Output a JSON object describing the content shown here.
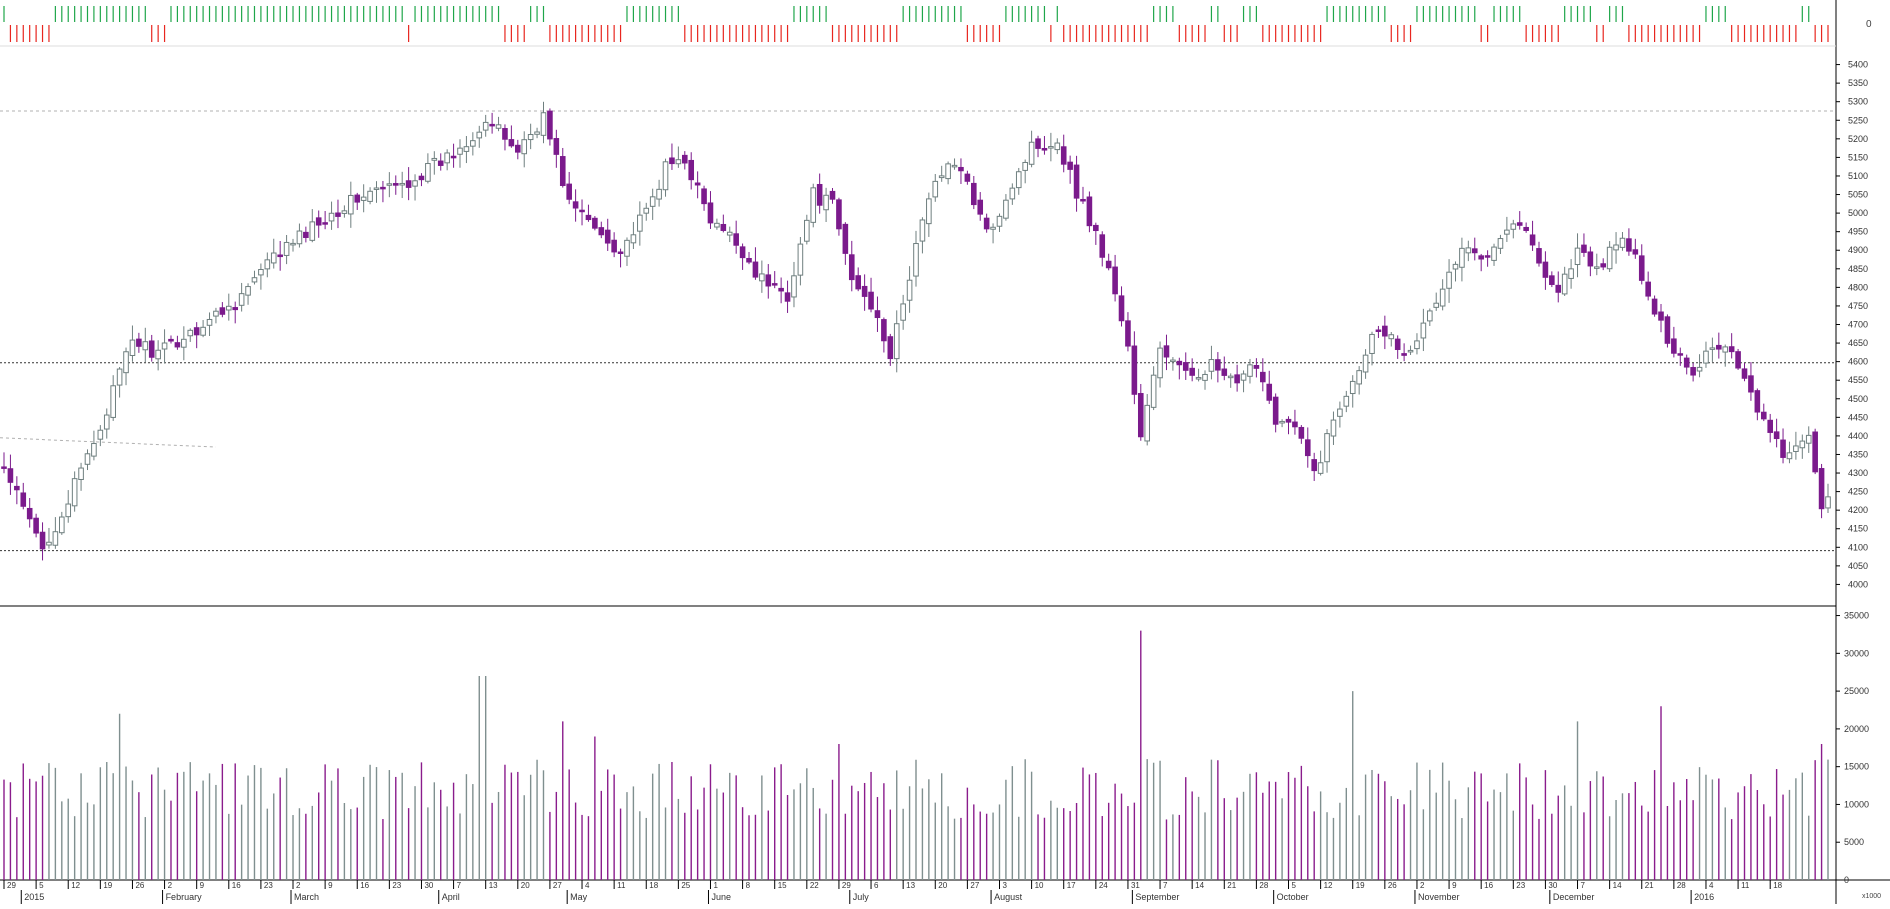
{
  "chart_data": {
    "type": "candlestick",
    "title": "",
    "indicator_axis": {
      "label": "0"
    },
    "price_axis": {
      "ylim": [
        3950,
        5450
      ],
      "tick_labels": [
        "5400",
        "5350",
        "5300",
        "5250",
        "5200",
        "5150",
        "5100",
        "5050",
        "5000",
        "4950",
        "4900",
        "4850",
        "4800",
        "4750",
        "4700",
        "4650",
        "4600",
        "4550",
        "4500",
        "4450",
        "4400",
        "4350",
        "4300",
        "4250",
        "4200",
        "4150",
        "4100",
        "4050",
        "4000"
      ]
    },
    "volume_axis": {
      "ylim": [
        0,
        36000
      ],
      "tick_labels": [
        "35000",
        "30000",
        "25000",
        "20000",
        "15000",
        "10000",
        "5000",
        "0"
      ],
      "unit_label": "x1000"
    },
    "horizontal_levels": [
      {
        "value": 5275,
        "style": "dotted-light"
      },
      {
        "value": 4597,
        "style": "dotted-dark"
      },
      {
        "value": 4091,
        "style": "dotted-dark"
      }
    ],
    "x_axis": {
      "week_labels": [
        {
          "i": 0,
          "label": "29"
        },
        {
          "i": 5,
          "label": "5"
        },
        {
          "i": 10,
          "label": "12"
        },
        {
          "i": 15,
          "label": "19"
        },
        {
          "i": 20,
          "label": "26"
        },
        {
          "i": 25,
          "label": "2"
        },
        {
          "i": 30,
          "label": "9"
        },
        {
          "i": 35,
          "label": "16"
        },
        {
          "i": 40,
          "label": "23"
        },
        {
          "i": 45,
          "label": "2"
        },
        {
          "i": 50,
          "label": "9"
        },
        {
          "i": 55,
          "label": "16"
        },
        {
          "i": 60,
          "label": "23"
        },
        {
          "i": 65,
          "label": "30"
        },
        {
          "i": 70,
          "label": "7"
        },
        {
          "i": 75,
          "label": "13"
        },
        {
          "i": 80,
          "label": "20"
        },
        {
          "i": 85,
          "label": "27"
        },
        {
          "i": 90,
          "label": "4"
        },
        {
          "i": 95,
          "label": "11"
        },
        {
          "i": 100,
          "label": "18"
        },
        {
          "i": 105,
          "label": "25"
        },
        {
          "i": 110,
          "label": "1"
        },
        {
          "i": 115,
          "label": "8"
        },
        {
          "i": 120,
          "label": "15"
        },
        {
          "i": 125,
          "label": "22"
        },
        {
          "i": 130,
          "label": "29"
        },
        {
          "i": 135,
          "label": "6"
        },
        {
          "i": 140,
          "label": "13"
        },
        {
          "i": 145,
          "label": "20"
        },
        {
          "i": 150,
          "label": "27"
        },
        {
          "i": 155,
          "label": "3"
        },
        {
          "i": 160,
          "label": "10"
        },
        {
          "i": 165,
          "label": "17"
        },
        {
          "i": 170,
          "label": "24"
        },
        {
          "i": 175,
          "label": "31"
        },
        {
          "i": 180,
          "label": "7"
        },
        {
          "i": 185,
          "label": "14"
        },
        {
          "i": 190,
          "label": "21"
        },
        {
          "i": 195,
          "label": "28"
        },
        {
          "i": 200,
          "label": "5"
        },
        {
          "i": 205,
          "label": "12"
        },
        {
          "i": 210,
          "label": "19"
        },
        {
          "i": 215,
          "label": "26"
        },
        {
          "i": 220,
          "label": "2"
        },
        {
          "i": 225,
          "label": "9"
        },
        {
          "i": 230,
          "label": "16"
        },
        {
          "i": 235,
          "label": "23"
        },
        {
          "i": 240,
          "label": "30"
        },
        {
          "i": 245,
          "label": "7"
        },
        {
          "i": 250,
          "label": "14"
        },
        {
          "i": 255,
          "label": "21"
        },
        {
          "i": 260,
          "label": "28"
        },
        {
          "i": 265,
          "label": "4"
        },
        {
          "i": 270,
          "label": "11"
        },
        {
          "i": 275,
          "label": "18"
        }
      ],
      "month_labels": [
        {
          "i": 3,
          "label": "2015"
        },
        {
          "i": 25,
          "label": "February"
        },
        {
          "i": 45,
          "label": "March"
        },
        {
          "i": 68,
          "label": "April"
        },
        {
          "i": 88,
          "label": "May"
        },
        {
          "i": 110,
          "label": "June"
        },
        {
          "i": 132,
          "label": "July"
        },
        {
          "i": 154,
          "label": "August"
        },
        {
          "i": 176,
          "label": "September"
        },
        {
          "i": 198,
          "label": "October"
        },
        {
          "i": 220,
          "label": "November"
        },
        {
          "i": 241,
          "label": "December"
        },
        {
          "i": 263,
          "label": "2016"
        }
      ]
    },
    "colors": {
      "up_outline": "#6f7f7f",
      "down_fill": "#7b1a8c",
      "indicator_up": "#1fa64a",
      "indicator_down": "#e8261f",
      "grid": "#cccccc",
      "volume_up": "#7f8f8f",
      "volume_down": "#8a1c8c"
    },
    "price_path": [
      {
        "i": 0,
        "c": 4310
      },
      {
        "i": 6,
        "c": 4095
      },
      {
        "i": 10,
        "c": 4225
      },
      {
        "i": 15,
        "c": 4425
      },
      {
        "i": 20,
        "c": 4660
      },
      {
        "i": 24,
        "c": 4620
      },
      {
        "i": 30,
        "c": 4690
      },
      {
        "i": 36,
        "c": 4760
      },
      {
        "i": 42,
        "c": 4880
      },
      {
        "i": 50,
        "c": 4990
      },
      {
        "i": 56,
        "c": 5050
      },
      {
        "i": 62,
        "c": 5075
      },
      {
        "i": 70,
        "c": 5160
      },
      {
        "i": 75,
        "c": 5250
      },
      {
        "i": 80,
        "c": 5170
      },
      {
        "i": 84,
        "c": 5260
      },
      {
        "i": 88,
        "c": 5030
      },
      {
        "i": 92,
        "c": 4960
      },
      {
        "i": 96,
        "c": 4900
      },
      {
        "i": 100,
        "c": 5000
      },
      {
        "i": 103,
        "c": 5120
      },
      {
        "i": 106,
        "c": 5150
      },
      {
        "i": 110,
        "c": 4975
      },
      {
        "i": 114,
        "c": 4920
      },
      {
        "i": 118,
        "c": 4820
      },
      {
        "i": 122,
        "c": 4780
      },
      {
        "i": 126,
        "c": 5050
      },
      {
        "i": 129,
        "c": 5020
      },
      {
        "i": 132,
        "c": 4820
      },
      {
        "i": 136,
        "c": 4730
      },
      {
        "i": 138,
        "c": 4615
      },
      {
        "i": 140,
        "c": 4750
      },
      {
        "i": 143,
        "c": 4990
      },
      {
        "i": 147,
        "c": 5150
      },
      {
        "i": 150,
        "c": 5080
      },
      {
        "i": 153,
        "c": 4940
      },
      {
        "i": 157,
        "c": 5080
      },
      {
        "i": 160,
        "c": 5180
      },
      {
        "i": 164,
        "c": 5195
      },
      {
        "i": 167,
        "c": 5060
      },
      {
        "i": 170,
        "c": 4945
      },
      {
        "i": 173,
        "c": 4790
      },
      {
        "i": 175,
        "c": 4640
      },
      {
        "i": 177,
        "c": 4390
      },
      {
        "i": 180,
        "c": 4640
      },
      {
        "i": 184,
        "c": 4560
      },
      {
        "i": 188,
        "c": 4590
      },
      {
        "i": 192,
        "c": 4530
      },
      {
        "i": 195,
        "c": 4600
      },
      {
        "i": 198,
        "c": 4450
      },
      {
        "i": 201,
        "c": 4420
      },
      {
        "i": 204,
        "c": 4300
      },
      {
        "i": 207,
        "c": 4440
      },
      {
        "i": 210,
        "c": 4560
      },
      {
        "i": 214,
        "c": 4700
      },
      {
        "i": 218,
        "c": 4630
      },
      {
        "i": 221,
        "c": 4690
      },
      {
        "i": 224,
        "c": 4800
      },
      {
        "i": 227,
        "c": 4900
      },
      {
        "i": 230,
        "c": 4880
      },
      {
        "i": 233,
        "c": 4950
      },
      {
        "i": 236,
        "c": 4980
      },
      {
        "i": 239,
        "c": 4870
      },
      {
        "i": 242,
        "c": 4790
      },
      {
        "i": 245,
        "c": 4900
      },
      {
        "i": 248,
        "c": 4840
      },
      {
        "i": 251,
        "c": 4930
      },
      {
        "i": 254,
        "c": 4880
      },
      {
        "i": 257,
        "c": 4720
      },
      {
        "i": 260,
        "c": 4640
      },
      {
        "i": 263,
        "c": 4570
      },
      {
        "i": 266,
        "c": 4650
      },
      {
        "i": 269,
        "c": 4630
      },
      {
        "i": 272,
        "c": 4520
      },
      {
        "i": 275,
        "c": 4400
      },
      {
        "i": 278,
        "c": 4340
      },
      {
        "i": 281,
        "c": 4395
      },
      {
        "i": 283,
        "c": 4220
      }
    ],
    "volume_spikes": [
      {
        "i": 18,
        "v": 22000
      },
      {
        "i": 74,
        "v": 27000
      },
      {
        "i": 75,
        "v": 27000
      },
      {
        "i": 87,
        "v": 21000
      },
      {
        "i": 92,
        "v": 19000
      },
      {
        "i": 130,
        "v": 18000
      },
      {
        "i": 177,
        "v": 33000
      },
      {
        "i": 178,
        "v": 16000
      },
      {
        "i": 210,
        "v": 25000
      },
      {
        "i": 245,
        "v": 21000
      },
      {
        "i": 258,
        "v": 23000
      },
      {
        "i": 283,
        "v": 18000
      }
    ]
  }
}
